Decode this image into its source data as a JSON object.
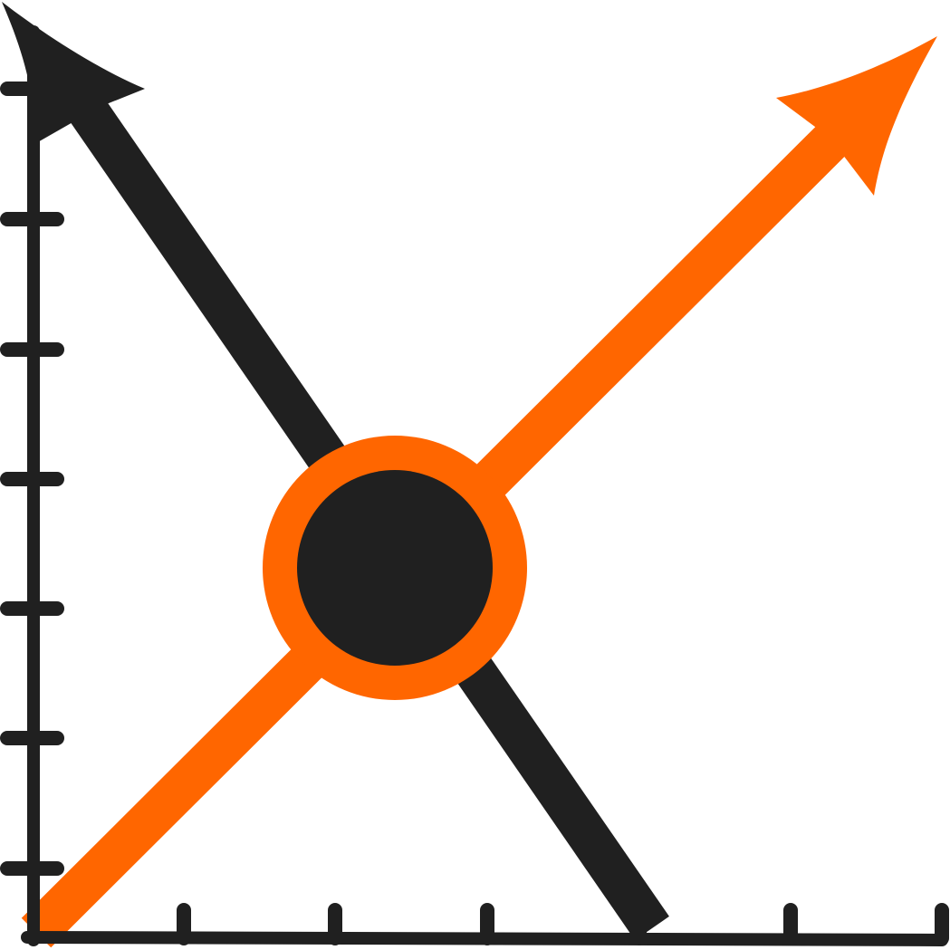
{
  "colors": {
    "dark": "#202020",
    "accent": "#ff6600",
    "background": "#ffffff"
  },
  "icons": {
    "axes": "axis-icon",
    "rising_arrow": "arrow-up-right-icon",
    "falling_arrow": "arrow-up-left-icon",
    "intersection": "intersection-point-icon"
  },
  "axis": {
    "y_tick_count": 7,
    "x_tick_count": 6
  }
}
